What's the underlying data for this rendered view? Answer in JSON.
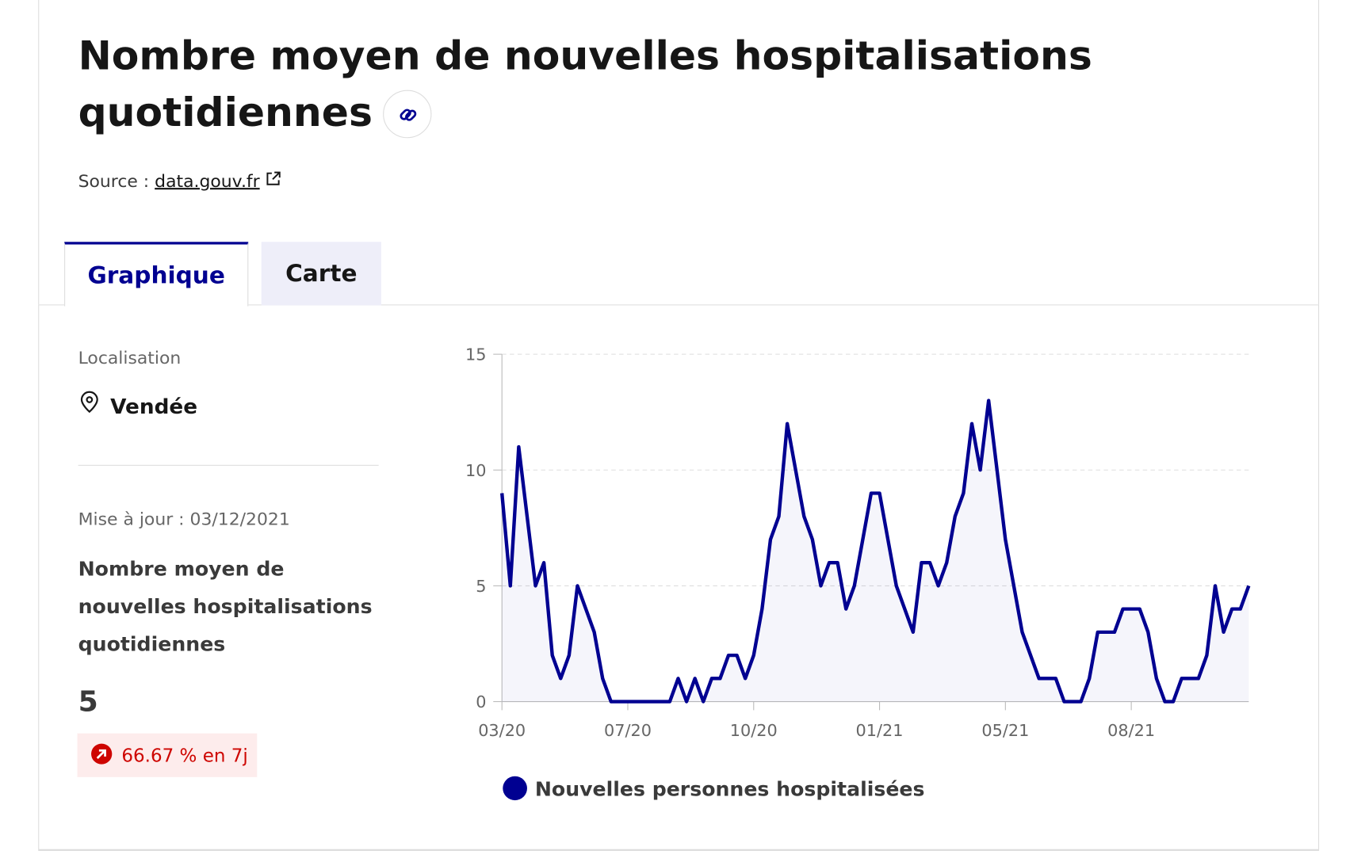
{
  "header": {
    "title": "Nombre moyen de nouvelles hospitalisations quotidiennes",
    "source_label": "Source :",
    "source_link": "data.gouv.fr"
  },
  "tabs": [
    "Graphique",
    "Carte"
  ],
  "sidebar": {
    "location_label": "Localisation",
    "location": "Vendée",
    "updated": "Mise à jour : 03/12/2021",
    "indicator": "Nombre moyen de nouvelles hospitalisations quotidiennes",
    "value": 5,
    "change": "66.67 % en 7j"
  },
  "chart_data": {
    "type": "line",
    "series": [
      {
        "name": "Nouvelles personnes hospitalisées",
        "color": "#000091",
        "values": [
          9,
          5,
          11,
          8,
          5,
          6,
          2,
          1,
          2,
          5,
          4,
          3,
          1,
          0,
          0,
          0,
          0,
          0,
          0,
          0,
          0,
          1,
          0,
          1,
          0,
          1,
          1,
          2,
          2,
          1,
          2,
          4,
          7,
          8,
          12,
          10,
          8,
          7,
          5,
          6,
          6,
          4,
          5,
          7,
          9,
          9,
          7,
          5,
          4,
          3,
          6,
          6,
          5,
          6,
          8,
          9,
          12,
          10,
          13,
          10,
          7,
          5,
          3,
          2,
          1,
          1,
          1,
          0,
          0,
          0,
          1,
          3,
          3,
          3,
          4,
          4,
          4,
          3,
          1,
          0,
          0,
          1,
          1,
          1,
          2,
          5,
          3,
          4,
          4,
          5
        ]
      }
    ],
    "xlim": [
      0,
      89
    ],
    "xticks": [
      {
        "value": 0,
        "label": "03/20"
      },
      {
        "value": 15,
        "label": "07/20"
      },
      {
        "value": 30,
        "label": "10/20"
      },
      {
        "value": 45,
        "label": "01/21"
      },
      {
        "value": 60,
        "label": "05/21"
      },
      {
        "value": 75,
        "label": "08/21"
      }
    ],
    "ylim": [
      0,
      15
    ],
    "yticks": [
      0,
      5,
      10,
      15
    ],
    "grid": true
  }
}
